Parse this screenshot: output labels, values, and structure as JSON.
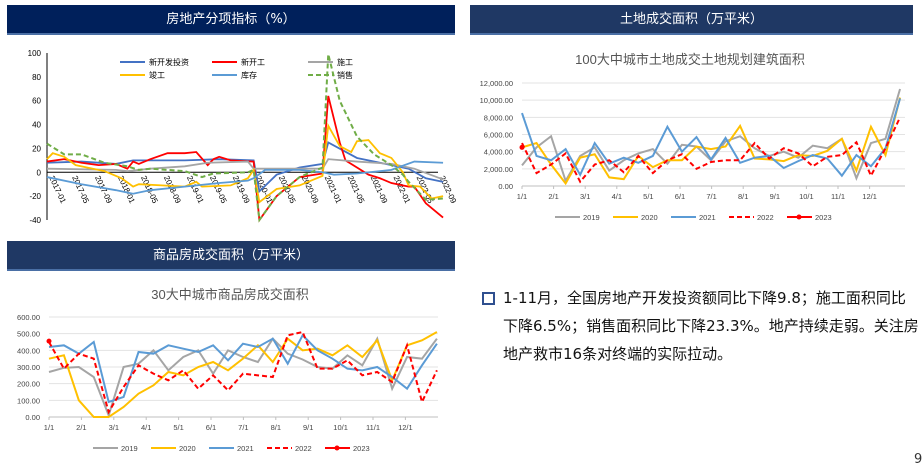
{
  "headers": {
    "top_left": "房地产分项指标（%）",
    "top_right": "土地成交面积（万平米）",
    "bottom_left": "商品房成交面积（万平米）"
  },
  "note": {
    "text": "1-11月，全国房地产开发投资额同比下降9.8；施工面积同比下降6.5%；销售面积同比下降23.3%。地产持续走弱。关注房地产救市16条对终端的实际拉动。"
  },
  "page_number": "9",
  "chart_data": [
    {
      "type": "line",
      "title": "",
      "x_unit": "month index from 2017-01",
      "ylim": [
        -40,
        100
      ],
      "y_ticks": [
        "-40",
        "-20",
        "0",
        "20",
        "40",
        "60",
        "80",
        "100"
      ],
      "x_ticks": [
        "2017-01",
        "2017-05",
        "2017-09",
        "2018-01",
        "2018-05",
        "2018-09",
        "2019-01",
        "2019-05",
        "2019-09",
        "2020-01",
        "2020-05",
        "2020-09",
        "2021-01",
        "2021-05",
        "2021-09",
        "2022-01",
        "2022-05",
        "2022-09"
      ],
      "grid": false,
      "legend": "top-center",
      "series": [
        {
          "name": "新开发投资",
          "color": "#4472c4",
          "dash": false,
          "points": [
            [
              0,
              8
            ],
            [
              6,
              9
            ],
            [
              12,
              7
            ],
            [
              15,
              10
            ],
            [
              24,
              10
            ],
            [
              30,
              11
            ],
            [
              36,
              10
            ],
            [
              37,
              -16
            ],
            [
              40,
              -2
            ],
            [
              44,
              4
            ],
            [
              48,
              7
            ],
            [
              49,
              25
            ],
            [
              54,
              12
            ],
            [
              60,
              6
            ],
            [
              63,
              3
            ],
            [
              66,
              -5
            ],
            [
              69,
              -8
            ]
          ]
        },
        {
          "name": "新开工",
          "color": "#ff0000",
          "dash": false,
          "points": [
            [
              0,
              9
            ],
            [
              3,
              11
            ],
            [
              6,
              8
            ],
            [
              9,
              6
            ],
            [
              12,
              7
            ],
            [
              14,
              3
            ],
            [
              15,
              9
            ],
            [
              16,
              7
            ],
            [
              18,
              11
            ],
            [
              21,
              16
            ],
            [
              24,
              16
            ],
            [
              26,
              17
            ],
            [
              28,
              6
            ],
            [
              29,
              11
            ],
            [
              30,
              13
            ],
            [
              32,
              10
            ],
            [
              36,
              9
            ],
            [
              37,
              -40
            ],
            [
              40,
              -20
            ],
            [
              44,
              -4
            ],
            [
              48,
              -1
            ],
            [
              49,
              64
            ],
            [
              51,
              25
            ],
            [
              52,
              10
            ],
            [
              54,
              4
            ],
            [
              56,
              -2
            ],
            [
              58,
              -5
            ],
            [
              60,
              -9
            ],
            [
              63,
              -12
            ],
            [
              64,
              -12
            ],
            [
              66,
              -26
            ],
            [
              68,
              -34
            ],
            [
              69,
              -38
            ]
          ]
        },
        {
          "name": "施工",
          "color": "#a5a5a5",
          "dash": false,
          "points": [
            [
              0,
              3
            ],
            [
              12,
              2
            ],
            [
              14,
              1
            ],
            [
              18,
              3
            ],
            [
              24,
              5
            ],
            [
              28,
              8
            ],
            [
              35,
              9
            ],
            [
              36,
              3
            ],
            [
              44,
              3
            ],
            [
              48,
              3
            ],
            [
              49,
              11
            ],
            [
              54,
              9
            ],
            [
              60,
              7
            ],
            [
              64,
              3
            ],
            [
              69,
              -6
            ]
          ]
        },
        {
          "name": "竣工",
          "color": "#ffc000",
          "dash": false,
          "points": [
            [
              0,
              11
            ],
            [
              1,
              16
            ],
            [
              3,
              13
            ],
            [
              5,
              6
            ],
            [
              8,
              3
            ],
            [
              10,
              1
            ],
            [
              13,
              -5
            ],
            [
              15,
              -12
            ],
            [
              16,
              -10
            ],
            [
              20,
              -11
            ],
            [
              24,
              -12
            ],
            [
              26,
              -8
            ],
            [
              27,
              -12
            ],
            [
              32,
              -11
            ],
            [
              35,
              -5
            ],
            [
              36,
              2
            ],
            [
              37,
              -25
            ],
            [
              40,
              -14
            ],
            [
              44,
              -11
            ],
            [
              48,
              -3
            ],
            [
              49,
              39
            ],
            [
              51,
              22
            ],
            [
              53,
              17
            ],
            [
              54,
              26
            ],
            [
              56,
              27
            ],
            [
              58,
              16
            ],
            [
              60,
              12
            ],
            [
              62,
              0
            ],
            [
              63,
              -11
            ],
            [
              65,
              -12
            ],
            [
              67,
              -22
            ],
            [
              69,
              -20
            ]
          ]
        },
        {
          "name": "库存",
          "color": "#5b9bd5",
          "dash": false,
          "points": [
            [
              0,
              -4
            ],
            [
              6,
              -10
            ],
            [
              12,
              -15
            ],
            [
              15,
              -18
            ],
            [
              18,
              -15
            ],
            [
              24,
              -12
            ],
            [
              30,
              -9
            ],
            [
              35,
              -7
            ],
            [
              36,
              -5
            ],
            [
              38,
              2
            ],
            [
              44,
              2
            ],
            [
              48,
              0
            ],
            [
              50,
              -2
            ],
            [
              54,
              -1
            ],
            [
              58,
              1
            ],
            [
              60,
              2
            ],
            [
              64,
              9
            ],
            [
              69,
              8
            ]
          ]
        },
        {
          "name": "销售",
          "color": "#70ad47",
          "dash": true,
          "points": [
            [
              0,
              24
            ],
            [
              3,
              15
            ],
            [
              6,
              15
            ],
            [
              10,
              8
            ],
            [
              14,
              5
            ],
            [
              16,
              2
            ],
            [
              18,
              3
            ],
            [
              24,
              1
            ],
            [
              27,
              -4
            ],
            [
              29,
              -1
            ],
            [
              35,
              0
            ],
            [
              36,
              2
            ],
            [
              37,
              -40
            ],
            [
              40,
              -20
            ],
            [
              44,
              -4
            ],
            [
              48,
              4
            ],
            [
              49,
              99
            ],
            [
              51,
              60
            ],
            [
              54,
              30
            ],
            [
              57,
              15
            ],
            [
              60,
              6
            ],
            [
              62,
              -2
            ],
            [
              63,
              -8
            ],
            [
              66,
              -23
            ],
            [
              69,
              -22
            ]
          ]
        }
      ]
    },
    {
      "type": "line",
      "title": "100大中城市土地成交土地规划建筑面积",
      "sample_interval_weeks": 2,
      "ylim": [
        0,
        12000
      ],
      "y_ticks": [
        "0.00",
        "2,000.00",
        "4,000.00",
        "6,000.00",
        "8,000.00",
        "10,000.00",
        "12,000.00"
      ],
      "x_ticks": [
        "1/1",
        "2/1",
        "3/1",
        "4/1",
        "5/1",
        "6/1",
        "7/1",
        "8/1",
        "9/1",
        "10/1",
        "11/1",
        "12/1"
      ],
      "grid": true,
      "legend": "bottom",
      "series": [
        {
          "name": "2019",
          "color": "#a5a5a5",
          "dash": false,
          "values": [
            2400,
            4500,
            5800,
            600,
            3500,
            4500,
            1800,
            3000,
            3800,
            4300,
            2600,
            4800,
            4600,
            3000,
            5200,
            5800,
            4400,
            3500,
            4000,
            3300,
            4700,
            4400,
            5500,
            900,
            5000,
            5500,
            11300
          ]
        },
        {
          "name": "2020",
          "color": "#ffc000",
          "dash": false,
          "values": [
            4500,
            5000,
            2500,
            300,
            3300,
            3700,
            1000,
            800,
            3500,
            2200,
            3000,
            3000,
            4600,
            4300,
            4600,
            7000,
            3200,
            3100,
            2900,
            3600,
            3500,
            4100,
            5500,
            1800,
            6900,
            3600,
            10300
          ]
        },
        {
          "name": "2021",
          "color": "#5b9bd5",
          "dash": false,
          "values": [
            8500,
            3500,
            3000,
            4300,
            1300,
            5000,
            2600,
            3300,
            2700,
            3500,
            6900,
            4000,
            5700,
            3100,
            5600,
            2700,
            3300,
            3500,
            2100,
            2900,
            3600,
            3200,
            1200,
            3600,
            2300,
            4400,
            10200
          ]
        },
        {
          "name": "2022",
          "color": "#ff0000",
          "dash": true,
          "values": [
            5000,
            1500,
            2500,
            3800,
            500,
            2500,
            3000,
            1600,
            3500,
            1500,
            3000,
            3700,
            2000,
            2800,
            3000,
            3000,
            5000,
            3200,
            4400,
            3800,
            2300,
            3400,
            3600,
            5100,
            1200,
            4400,
            8000
          ]
        },
        {
          "name": "2023",
          "color": "#ff0000",
          "dash": false,
          "marker": true,
          "values": [
            4500
          ]
        }
      ]
    },
    {
      "type": "line",
      "title": "30大中城市商品房成交面积",
      "sample_interval_weeks": 2,
      "ylim": [
        0,
        600
      ],
      "y_ticks": [
        "0.00",
        "100.00",
        "200.00",
        "300.00",
        "400.00",
        "500.00",
        "600.00"
      ],
      "x_ticks": [
        "1/1",
        "2/1",
        "3/1",
        "4/1",
        "5/1",
        "6/1",
        "7/1",
        "8/1",
        "9/1",
        "10/1",
        "11/1",
        "12/1"
      ],
      "grid": true,
      "legend": "bottom",
      "series": [
        {
          "name": "2019",
          "color": "#a5a5a5",
          "dash": false,
          "values": [
            270,
            295,
            300,
            240,
            10,
            300,
            320,
            400,
            280,
            360,
            400,
            260,
            400,
            360,
            330,
            470,
            380,
            345,
            300,
            290,
            370,
            310,
            470,
            170,
            360,
            350,
            470
          ]
        },
        {
          "name": "2020",
          "color": "#ffc000",
          "dash": false,
          "values": [
            350,
            370,
            100,
            0,
            0,
            60,
            140,
            190,
            270,
            250,
            300,
            330,
            280,
            350,
            430,
            330,
            470,
            400,
            410,
            370,
            430,
            360,
            460,
            220,
            430,
            460,
            510
          ]
        },
        {
          "name": "2021",
          "color": "#5b9bd5",
          "dash": false,
          "values": [
            420,
            430,
            380,
            450,
            90,
            120,
            390,
            380,
            430,
            410,
            390,
            430,
            340,
            440,
            420,
            470,
            320,
            490,
            400,
            350,
            290,
            280,
            300,
            240,
            170,
            310,
            440
          ]
        },
        {
          "name": "2022",
          "color": "#ff0000",
          "dash": true,
          "values": [
            450,
            290,
            380,
            350,
            30,
            180,
            310,
            260,
            220,
            280,
            170,
            250,
            160,
            260,
            250,
            240,
            490,
            510,
            290,
            290,
            340,
            250,
            270,
            210,
            430,
            90,
            280
          ]
        },
        {
          "name": "2023",
          "color": "#ff0000",
          "dash": false,
          "marker": true,
          "values": [
            455
          ]
        }
      ]
    }
  ]
}
